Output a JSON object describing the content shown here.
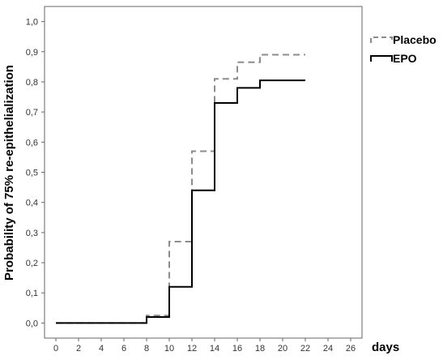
{
  "chart_data": {
    "type": "line",
    "title": "",
    "xlabel": "days",
    "ylabel": "Probability of 75% re-epithelialization",
    "x_ticks": [
      "0",
      "2",
      "4",
      "6",
      "8",
      "10",
      "12",
      "14",
      "16",
      "18",
      "20",
      "22",
      "24",
      "26"
    ],
    "y_ticks": [
      "0,0",
      "0,1",
      "0,2",
      "0,3",
      "0,4",
      "0,5",
      "0,6",
      "0,7",
      "0,8",
      "0,9",
      "1,0"
    ],
    "xlim": [
      -1,
      27
    ],
    "ylim": [
      -0.05,
      1.05
    ],
    "grid": false,
    "legend_position": "top-right",
    "series": [
      {
        "name": "Placebo",
        "style": "dashed-step",
        "color": "#8c8c8c",
        "x": [
          0,
          8,
          10,
          12,
          14,
          16,
          18,
          22
        ],
        "y": [
          0.0,
          0.025,
          0.27,
          0.57,
          0.81,
          0.865,
          0.89,
          0.89
        ]
      },
      {
        "name": "EPO",
        "style": "solid-step",
        "color": "#000000",
        "x": [
          0,
          8,
          10,
          12,
          14,
          16,
          18,
          22
        ],
        "y": [
          0.0,
          0.02,
          0.12,
          0.44,
          0.73,
          0.78,
          0.805,
          0.805
        ]
      }
    ]
  }
}
